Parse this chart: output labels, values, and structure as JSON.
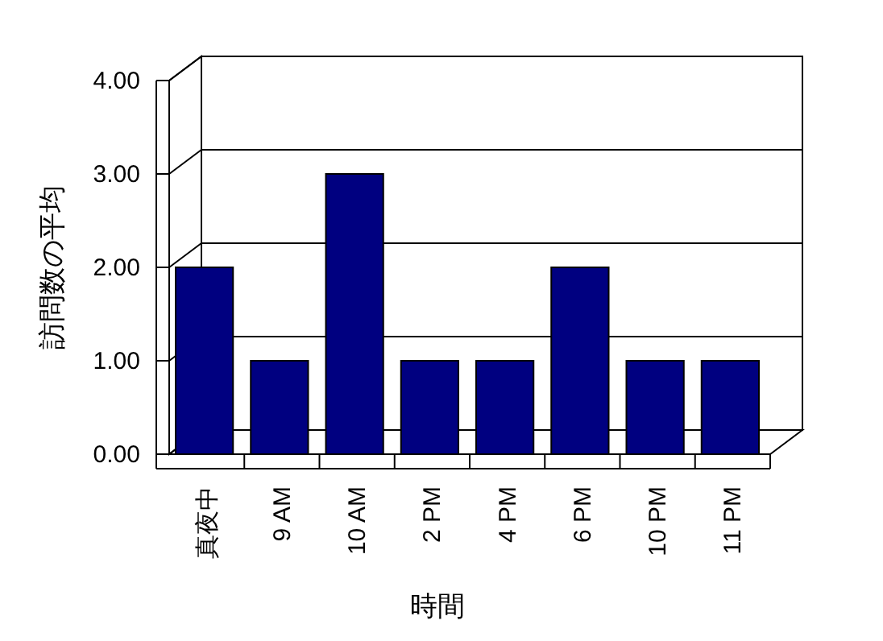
{
  "chart_data": {
    "type": "bar",
    "xlabel": "時間",
    "ylabel": "訪問数の平均",
    "categories": [
      "真夜中",
      "9 AM",
      "10 AM",
      "2 PM",
      "4 PM",
      "6 PM",
      "10 PM",
      "11 PM"
    ],
    "values": [
      2,
      1,
      3,
      1,
      1,
      2,
      1,
      1
    ],
    "color": "#000080",
    "ylim": [
      0,
      4
    ],
    "yticks": [
      {
        "value": 0,
        "label": "0.00"
      },
      {
        "value": 1,
        "label": "1.00"
      },
      {
        "value": 2,
        "label": "2.00"
      },
      {
        "value": 3,
        "label": "3.00"
      },
      {
        "value": 4,
        "label": "4.00"
      }
    ],
    "grid": "y"
  }
}
